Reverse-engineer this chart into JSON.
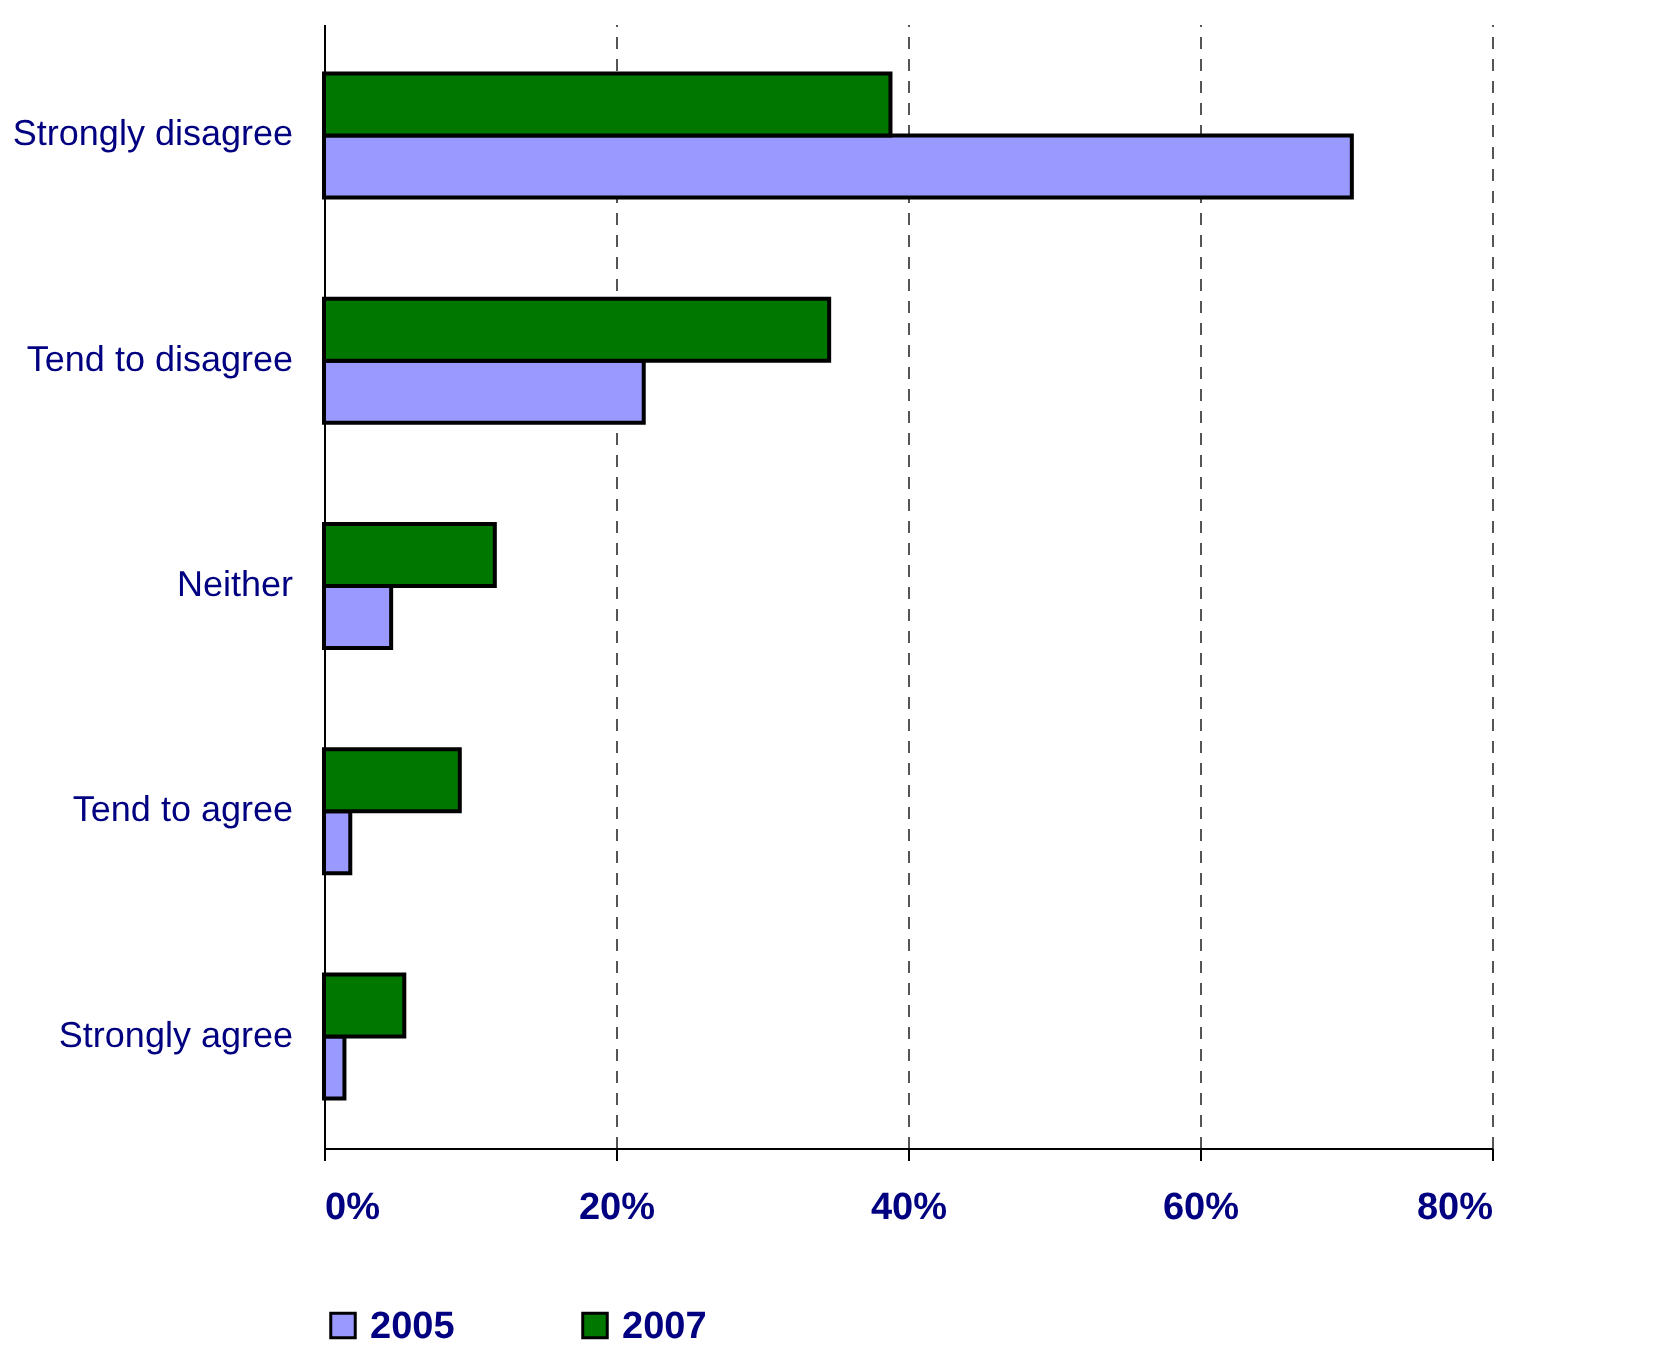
{
  "chart_data": {
    "type": "bar",
    "orientation": "horizontal",
    "categories": [
      "Strongly disagree",
      "Tend to disagree",
      "Neither",
      "Tend to agree",
      "Strongly agree"
    ],
    "series": [
      {
        "name": "2005",
        "color": "#9999ff",
        "values": [
          70.4,
          21.9,
          4.6,
          1.8,
          1.4
        ]
      },
      {
        "name": "2007",
        "color": "#007800",
        "values": [
          38.8,
          34.6,
          11.7,
          9.3,
          5.5
        ]
      }
    ],
    "xlim": [
      0,
      80
    ],
    "xticks": [
      {
        "value": 0,
        "label": "0%"
      },
      {
        "value": 20,
        "label": "20%"
      },
      {
        "value": 40,
        "label": "40%"
      },
      {
        "value": 60,
        "label": "60%"
      },
      {
        "value": 80,
        "label": "80%"
      }
    ],
    "grid": "x",
    "legend": "bottom"
  }
}
